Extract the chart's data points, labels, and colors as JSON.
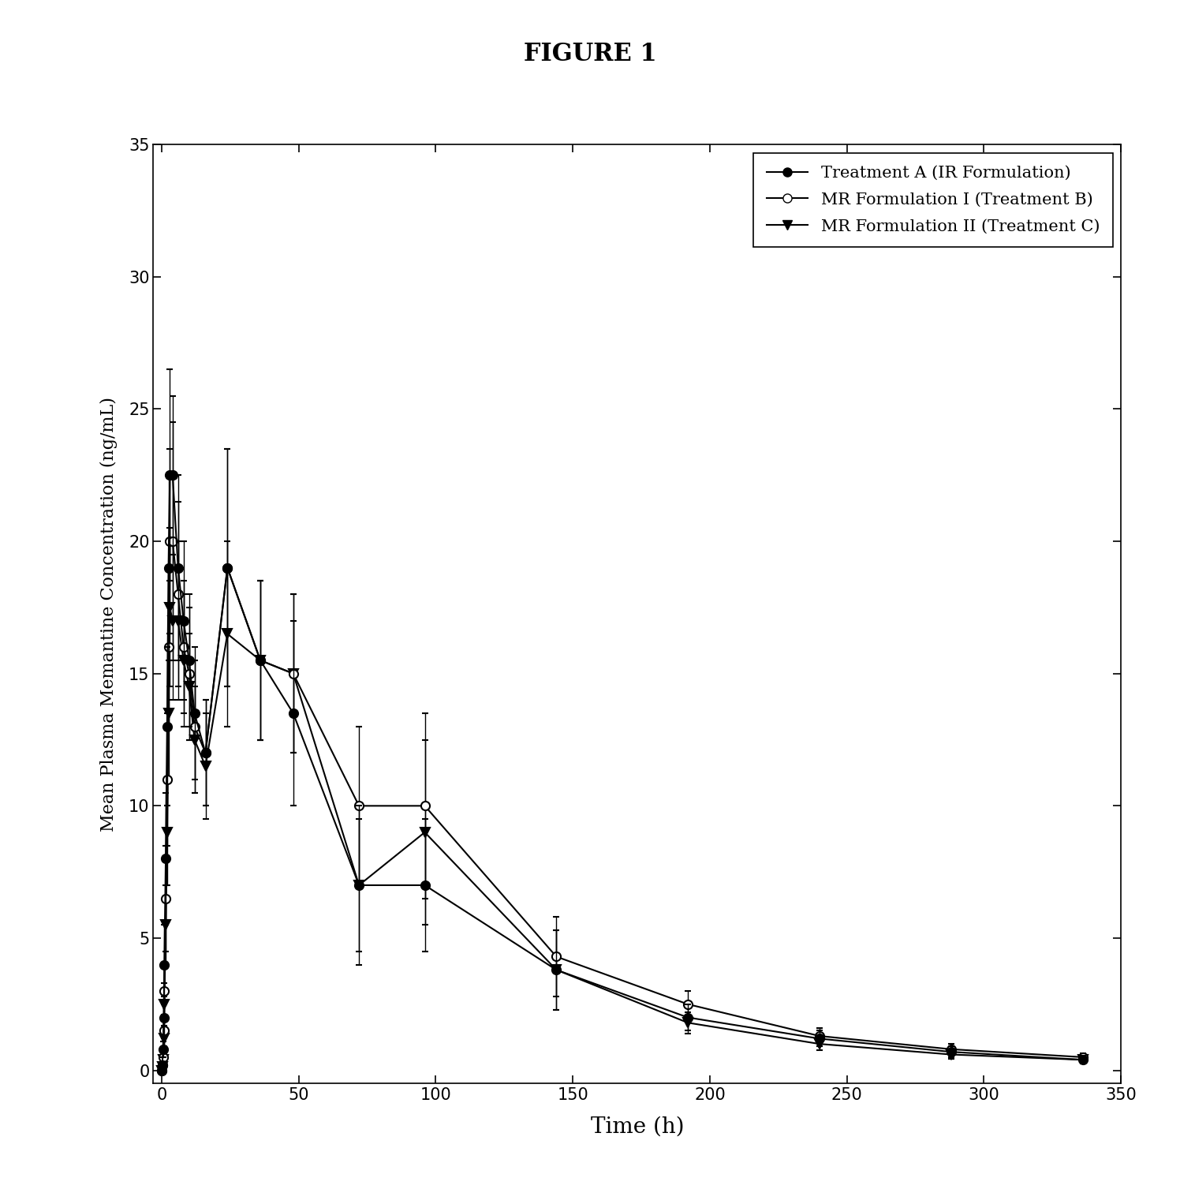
{
  "title": "FIGURE 1",
  "xlabel": "Time (h)",
  "ylabel": "Mean Plasma Memantine Concentration (ng/mL)",
  "xlim": [
    -3,
    350
  ],
  "ylim": [
    -0.5,
    35
  ],
  "xticks": [
    0,
    50,
    100,
    150,
    200,
    250,
    300,
    350
  ],
  "yticks": [
    0,
    5,
    10,
    15,
    20,
    25,
    30,
    35
  ],
  "legend_labels": [
    "Treatment A (IR Formulation)",
    "MR Formulation I (Treatment B)",
    "MR Formulation II (Treatment C)"
  ],
  "series_A": {
    "x": [
      0,
      0.25,
      0.5,
      0.75,
      1,
      1.5,
      2,
      2.5,
      3,
      4,
      6,
      8,
      10,
      12,
      16,
      24,
      36,
      48,
      72,
      96,
      144,
      192,
      240,
      288,
      336
    ],
    "y": [
      0,
      0.2,
      0.8,
      2.0,
      4.0,
      8.0,
      13.0,
      19.0,
      22.5,
      22.5,
      19.0,
      17.0,
      15.5,
      13.5,
      12.0,
      19.0,
      15.5,
      13.5,
      7.0,
      7.0,
      3.8,
      2.0,
      1.2,
      0.7,
      0.4
    ],
    "yerr": [
      0,
      0.1,
      0.3,
      0.8,
      1.5,
      2.5,
      3.0,
      3.5,
      4.0,
      3.0,
      3.5,
      3.0,
      2.5,
      2.5,
      2.0,
      4.5,
      3.0,
      3.5,
      3.0,
      2.5,
      1.5,
      0.5,
      0.3,
      0.2,
      0.15
    ],
    "marker": "o",
    "fillstyle": "full",
    "color": "black"
  },
  "series_B": {
    "x": [
      0,
      0.25,
      0.5,
      0.75,
      1,
      1.5,
      2,
      2.5,
      3,
      4,
      6,
      8,
      10,
      12,
      16,
      24,
      36,
      48,
      72,
      96,
      144,
      192,
      240,
      288,
      336
    ],
    "y": [
      0,
      0.2,
      0.5,
      1.5,
      3.0,
      6.5,
      11.0,
      16.0,
      20.0,
      20.0,
      18.0,
      16.0,
      15.0,
      13.0,
      12.0,
      19.0,
      15.5,
      15.0,
      10.0,
      10.0,
      4.3,
      2.5,
      1.3,
      0.8,
      0.5
    ],
    "yerr": [
      0,
      0.1,
      0.3,
      0.6,
      1.0,
      2.0,
      2.5,
      3.0,
      3.5,
      4.5,
      3.5,
      2.5,
      2.5,
      2.5,
      2.0,
      4.5,
      3.0,
      3.0,
      3.0,
      3.5,
      1.5,
      0.5,
      0.3,
      0.2,
      0.15
    ],
    "marker": "o",
    "fillstyle": "none",
    "color": "black"
  },
  "series_C": {
    "x": [
      0,
      0.25,
      0.5,
      0.75,
      1,
      1.5,
      2,
      2.5,
      3,
      4,
      6,
      8,
      10,
      12,
      16,
      24,
      36,
      48,
      72,
      96,
      144,
      192,
      240,
      288,
      336
    ],
    "y": [
      0,
      0.15,
      0.4,
      1.2,
      2.5,
      5.5,
      9.0,
      13.5,
      17.5,
      17.0,
      17.0,
      15.5,
      14.5,
      12.5,
      11.5,
      16.5,
      15.5,
      15.0,
      7.0,
      9.0,
      3.8,
      1.8,
      1.0,
      0.6,
      0.4
    ],
    "yerr": [
      0,
      0.1,
      0.2,
      0.5,
      0.8,
      1.5,
      2.0,
      2.5,
      3.0,
      3.0,
      3.0,
      2.5,
      2.0,
      2.0,
      2.0,
      3.5,
      3.0,
      3.0,
      2.5,
      3.5,
      1.5,
      0.4,
      0.25,
      0.15,
      0.1
    ],
    "marker": "v",
    "fillstyle": "full",
    "color": "black"
  },
  "bg_color": "#ffffff",
  "line_color": "black",
  "line_width": 1.5,
  "marker_size": 8,
  "cap_size": 3,
  "elinewidth": 1.0
}
